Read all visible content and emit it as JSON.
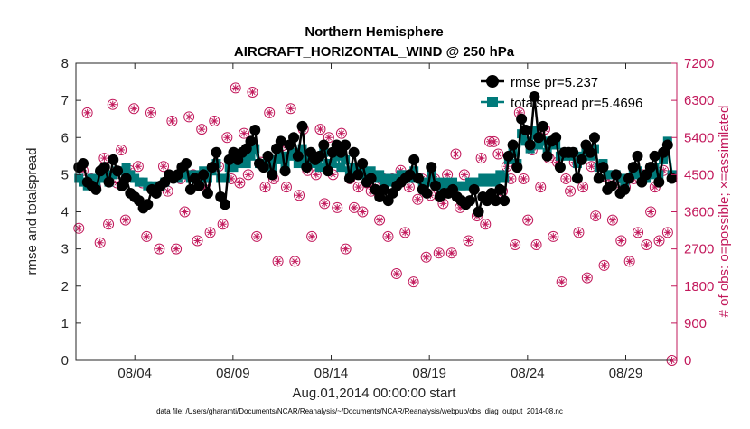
{
  "chart_data": {
    "type": "line",
    "title": "Northern Hemisphere",
    "subtitle": "AIRCRAFT_HORIZONTAL_WIND @ 250 hPa",
    "xlabel": "Aug.01,2014 00:00:00 start",
    "ylabel_left": "rmse and totalspread",
    "ylabel_right": "# of obs: o=possible; ×=assimilated",
    "ylim_left": [
      0,
      8
    ],
    "ylim_right": [
      0,
      7200
    ],
    "yticks_left": [
      0,
      1,
      2,
      3,
      4,
      5,
      6,
      7,
      8
    ],
    "yticks_right": [
      0,
      900,
      1800,
      2700,
      3600,
      4500,
      5400,
      6300,
      7200
    ],
    "xlim_days": [
      0,
      30.6
    ],
    "xticks": [
      {
        "day": 3,
        "label": "08/04"
      },
      {
        "day": 8,
        "label": "08/09"
      },
      {
        "day": 13,
        "label": "08/14"
      },
      {
        "day": 18,
        "label": "08/19"
      },
      {
        "day": 23,
        "label": "08/24"
      },
      {
        "day": 28,
        "label": "08/29"
      }
    ],
    "footnote": "data file: /Users/gharamti/Documents/NCAR/Reanalysis/~/Documents/NCAR/Reanalysis/webpub/obs_diag_output_2014-08.nc",
    "series": [
      {
        "name": "rmse pr=5.237",
        "color": "#000000",
        "marker": "circle",
        "values": [
          5.2,
          5.3,
          4.8,
          4.7,
          4.6,
          5.1,
          5.2,
          4.8,
          5.4,
          5.1,
          4.7,
          4.9,
          4.5,
          4.4,
          4.3,
          4.1,
          4.2,
          4.6,
          4.5,
          4.7,
          4.8,
          5.0,
          4.9,
          5.0,
          5.2,
          5.3,
          4.6,
          4.9,
          4.7,
          5.0,
          4.5,
          5.2,
          5.6,
          4.4,
          4.2,
          5.4,
          5.6,
          5.4,
          5.6,
          5.7,
          5.9,
          6.2,
          5.3,
          5.2,
          5.5,
          5.0,
          5.7,
          5.9,
          5.1,
          5.8,
          6.0,
          5.5,
          6.3,
          5.2,
          5.6,
          5.4,
          5.5,
          5.8,
          5.1,
          5.6,
          5.8,
          5.6,
          5.8,
          4.9,
          5.6,
          5.0,
          5.3,
          4.8,
          4.9,
          4.6,
          4.4,
          4.6,
          4.3,
          4.5,
          4.7,
          4.8,
          4.9,
          5.0,
          5.4,
          4.9,
          4.6,
          4.5,
          5.2,
          4.7,
          4.4,
          4.5,
          4.5,
          4.6,
          4.4,
          4.3,
          4.2,
          4.3,
          4.6,
          4.0,
          4.4,
          4.3,
          4.5,
          4.3,
          4.6,
          4.3,
          5.5,
          5.8,
          5.2,
          6.5,
          6.2,
          5.8,
          7.1,
          6.0,
          6.3,
          5.5,
          5.9,
          6.0,
          5.2,
          5.6,
          5.6,
          5.6,
          4.9,
          5.4,
          5.8,
          5.6,
          6.0,
          4.9,
          5.2,
          4.6,
          4.7,
          5.0,
          4.5,
          4.6,
          4.9,
          5.2,
          5.5,
          4.8,
          5.0,
          5.2,
          5.5,
          4.8,
          5.6,
          5.8,
          4.9
        ]
      },
      {
        "name": "totalspread pr=5.4696",
        "color": "#007a7a",
        "marker": "square",
        "values": [
          4.9,
          4.8,
          4.7,
          4.9,
          4.8,
          4.9,
          5.0,
          4.8,
          5.0,
          5.1,
          5.1,
          5.2,
          5.0,
          4.9,
          4.8,
          4.8,
          4.7,
          4.7,
          4.6,
          4.7,
          4.8,
          4.9,
          4.9,
          4.9,
          5.0,
          5.0,
          4.9,
          5.0,
          4.8,
          5.1,
          4.9,
          5.1,
          5.3,
          4.9,
          4.9,
          5.2,
          5.2,
          5.3,
          5.4,
          5.3,
          5.5,
          5.7,
          5.3,
          5.3,
          5.4,
          5.2,
          5.4,
          5.5,
          5.3,
          5.5,
          5.6,
          5.3,
          5.7,
          5.4,
          5.4,
          5.3,
          5.2,
          5.6,
          5.3,
          5.3,
          5.5,
          5.2,
          5.4,
          5.1,
          5.2,
          5.0,
          5.2,
          5.0,
          5.1,
          4.9,
          5.0,
          4.8,
          4.9,
          4.8,
          4.9,
          5.0,
          5.0,
          4.9,
          5.1,
          4.9,
          4.8,
          4.8,
          5.0,
          4.8,
          4.7,
          4.8,
          4.7,
          4.8,
          4.7,
          4.7,
          4.7,
          4.8,
          4.8,
          4.8,
          4.9,
          4.8,
          4.9,
          4.8,
          5.0,
          4.9,
          5.4,
          5.6,
          5.3,
          6.1,
          5.9,
          5.7,
          6.2,
          5.8,
          5.9,
          5.6,
          5.8,
          5.8,
          5.5,
          5.6,
          5.5,
          5.6,
          5.3,
          5.5,
          5.6,
          5.5,
          5.7,
          5.2,
          5.3,
          5.0,
          5.0,
          5.0,
          4.9,
          4.8,
          4.9,
          5.0,
          5.1,
          4.9,
          4.9,
          5.0,
          5.2,
          5.0,
          5.4,
          5.9,
          5.0
        ]
      },
      {
        "name": "possible",
        "color": "#c2185b",
        "marker": "open-circle",
        "values": [
          3200,
          4600,
          6000,
          4400,
          4200,
          2850,
          4900,
          3300,
          6200,
          4300,
          5100,
          3400,
          4600,
          6100,
          4700,
          4300,
          3000,
          6000,
          4200,
          2700,
          4700,
          4100,
          5800,
          2700,
          4400,
          3600,
          5900,
          4500,
          2900,
          5600,
          4200,
          3100,
          5800,
          4700,
          3300,
          5400,
          4400,
          6600,
          4300,
          5500,
          4500,
          6500,
          3000,
          4800,
          4200,
          6000,
          4400,
          2400,
          5200,
          4200,
          6100,
          2400,
          4000,
          5600,
          4600,
          3000,
          4500,
          5600,
          3800,
          5400,
          4500,
          3700,
          5500,
          2700,
          4400,
          3700,
          4200,
          3600,
          4300,
          4100,
          4200,
          3400,
          4400,
          3000,
          4400,
          2100,
          4600,
          3100,
          4200,
          1900,
          3900,
          4400,
          2500,
          4000,
          4400,
          2600,
          3800,
          4500,
          2600,
          5000,
          3700,
          4500,
          2900,
          4300,
          3500,
          4900,
          3300,
          5300,
          5300,
          5000,
          4100,
          4700,
          4400,
          2800,
          6000,
          4400,
          3400,
          5100,
          2800,
          4200,
          5600,
          4900,
          3000,
          4800,
          1900,
          4400,
          4100,
          4800,
          3100,
          4200,
          2000,
          4700,
          3500,
          4700,
          2300,
          4400,
          3400,
          4300,
          2900,
          4200,
          2400,
          4400,
          3100,
          4500,
          2800,
          3600,
          4200,
          2900,
          4600,
          3100,
          0
        ]
      },
      {
        "name": "assimilated",
        "color": "#c2185b",
        "marker": "asterisk",
        "values": [
          3200,
          4600,
          6000,
          4400,
          4200,
          2850,
          4900,
          3300,
          6200,
          4300,
          5100,
          3400,
          4600,
          6100,
          4700,
          4300,
          3000,
          6000,
          4200,
          2700,
          4700,
          4100,
          5800,
          2700,
          4400,
          3600,
          5900,
          4500,
          2900,
          5600,
          4200,
          3100,
          5800,
          4700,
          3300,
          5400,
          4400,
          6600,
          4300,
          5500,
          4500,
          6500,
          3000,
          4800,
          4200,
          6000,
          4400,
          2400,
          5200,
          4200,
          6100,
          2400,
          4000,
          5600,
          4600,
          3000,
          4500,
          5600,
          3800,
          5400,
          4500,
          3700,
          5500,
          2700,
          4400,
          3700,
          4200,
          3600,
          4300,
          4100,
          4200,
          3400,
          4400,
          3000,
          4400,
          2100,
          4600,
          3100,
          4200,
          1900,
          3900,
          4400,
          2500,
          4000,
          4400,
          2600,
          3800,
          4500,
          2600,
          5000,
          3700,
          4500,
          2900,
          4300,
          3500,
          4900,
          3300,
          5300,
          5300,
          5000,
          4100,
          4700,
          4400,
          2800,
          6000,
          4400,
          3400,
          5100,
          2800,
          4200,
          5600,
          4900,
          3000,
          4800,
          1900,
          4400,
          4100,
          4800,
          3100,
          4200,
          2000,
          4700,
          3500,
          4700,
          2300,
          4400,
          3400,
          4300,
          2900,
          4200,
          2400,
          4400,
          3100,
          4500,
          2800,
          3600,
          4200,
          2900,
          4600,
          3100,
          0
        ]
      }
    ]
  }
}
